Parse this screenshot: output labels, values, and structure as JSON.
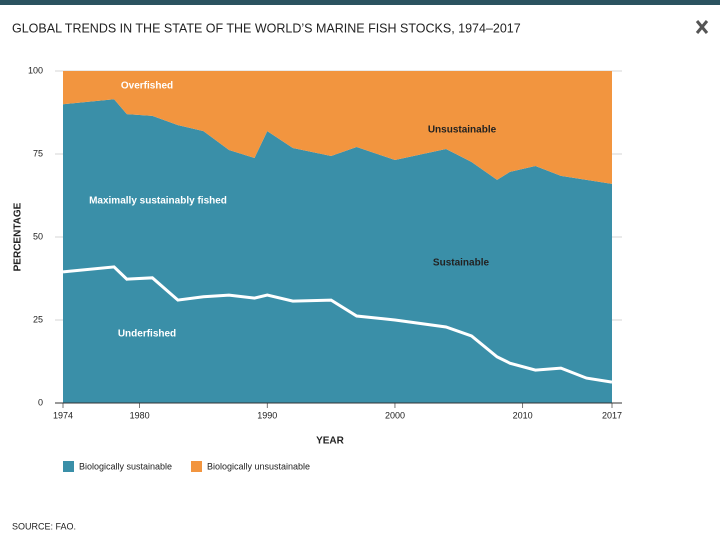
{
  "chart_data": {
    "type": "stacked-area",
    "title": "GLOBAL TRENDS IN THE STATE OF THE WORLD’S MARINE FISH STOCKS, 1974–2017",
    "x_label": "YEAR",
    "y_label": "PERCENTAGE",
    "x": [
      1974,
      1978,
      1979,
      1981,
      1983,
      1985,
      1987,
      1989,
      1990,
      1992,
      1995,
      1997,
      2000,
      2004,
      2006,
      2008,
      2009,
      2011,
      2013,
      2015,
      2017
    ],
    "series": [
      {
        "name": "Biologically sustainable",
        "color": "#3a8fa8",
        "values": [
          90,
          91.5,
          87,
          86.5,
          83.7,
          81.9,
          76.2,
          73.8,
          81.9,
          76.8,
          74.4,
          77.1,
          73.2,
          76.5,
          72.6,
          67.2,
          69.6,
          71.4,
          68.4,
          67.2,
          66
        ]
      },
      {
        "name": "Biologically unsustainable",
        "color": "#f2953f",
        "values": [
          10,
          8.5,
          13,
          13.5,
          16.3,
          18.1,
          23.8,
          26.2,
          18.1,
          23.2,
          25.6,
          22.9,
          26.8,
          23.5,
          27.4,
          32.8,
          30.4,
          28.6,
          31.6,
          32.8,
          34
        ]
      }
    ],
    "underfished_line": {
      "color": "#ffffff",
      "values": [
        39.5,
        41,
        37.3,
        37.7,
        31,
        32,
        32.5,
        31.6,
        32.5,
        30.7,
        31,
        26.2,
        25,
        22.9,
        20.2,
        13.9,
        12,
        9.9,
        10.5,
        7.5,
        6.3
      ]
    },
    "annotations": [
      "Overfished",
      "Unsustainable",
      "Maximally sustainably fished",
      "Sustainable",
      "Underfished"
    ],
    "xlim": [
      1974,
      2017
    ],
    "xticks": [
      1974,
      1980,
      1990,
      2000,
      2010,
      2017
    ],
    "ylim": [
      0,
      100
    ],
    "yticks": [
      0,
      25,
      50,
      75,
      100
    ],
    "grid": true,
    "source": "SOURCE: FAO."
  }
}
